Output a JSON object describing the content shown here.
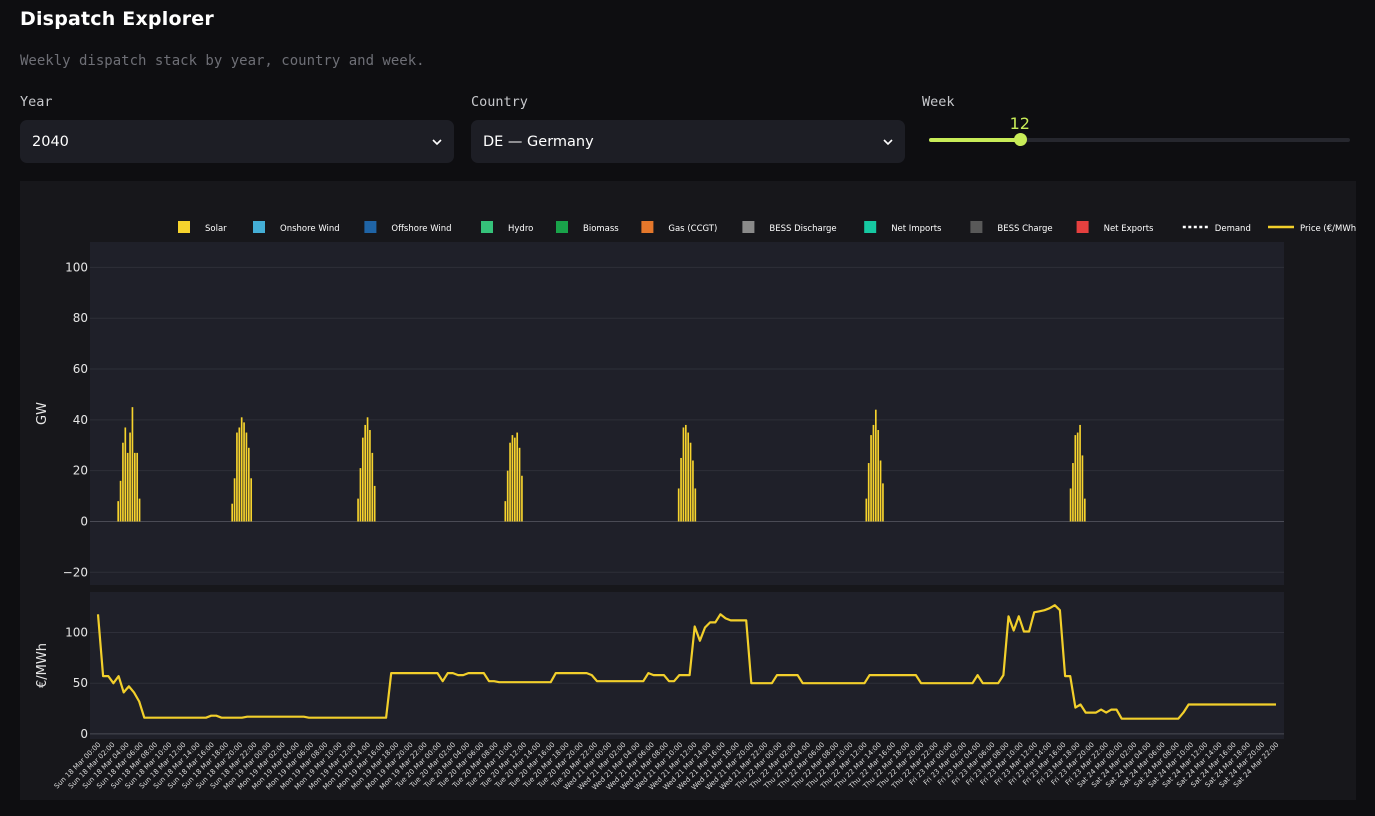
{
  "app": {
    "title": "Dispatch Explorer",
    "subtitle": "Weekly dispatch stack by year, country and week."
  },
  "controls": {
    "year": {
      "label": "Year",
      "value": "2040"
    },
    "country": {
      "label": "Country",
      "value": "DE — Germany"
    },
    "week": {
      "label": "Week",
      "value": 12,
      "min": 1,
      "max": 52
    }
  },
  "colors": {
    "accent": "#c8ec58",
    "Solar": "#f6d32d",
    "Onshore Wind": "#44aed6",
    "Offshore Wind": "#1f64a6",
    "Hydro": "#35c27a",
    "Biomass": "#19a34a",
    "Gas (CCGT)": "#e4772b",
    "BESS Discharge": "#8a8a8a",
    "Net Imports": "#16c9a2",
    "BESS Charge": "#595959",
    "Net Exports": "#e5403f",
    "Demand": "#ffffff",
    "Price (€/MWh)": "#f2cf2b"
  },
  "chart_data": {
    "type": "bar",
    "legend": [
      "Solar",
      "Onshore Wind",
      "Offshore Wind",
      "Hydro",
      "Biomass",
      "Gas (CCGT)",
      "BESS Discharge",
      "Net Imports",
      "BESS Charge",
      "Net Exports",
      "Demand",
      "Price (€/MWh)"
    ],
    "legend_placement": "top-center",
    "top_panel": {
      "ylabel": "GW",
      "ylim": [
        -25,
        110
      ],
      "yticks": [
        -20,
        0,
        20,
        40,
        60,
        80,
        100
      ],
      "stacked": true
    },
    "bottom_panel": {
      "ylabel": "€/MWh",
      "ylim": [
        -5,
        140
      ],
      "yticks": [
        0,
        50,
        100
      ]
    },
    "x_ticks": [
      "Sun 18 Mar 00:00",
      "Sun 18 Mar 02:00",
      "Sun 18 Mar 04:00",
      "Sun 18 Mar 06:00",
      "Sun 18 Mar 08:00",
      "Sun 18 Mar 10:00",
      "Sun 18 Mar 12:00",
      "Sun 18 Mar 14:00",
      "Sun 18 Mar 16:00",
      "Sun 18 Mar 18:00",
      "Sun 18 Mar 20:00",
      "Sun 18 Mar 22:00",
      "Mon 19 Mar 00:00",
      "Mon 19 Mar 02:00",
      "Mon 19 Mar 04:00",
      "Mon 19 Mar 06:00",
      "Mon 19 Mar 08:00",
      "Mon 19 Mar 10:00",
      "Mon 19 Mar 12:00",
      "Mon 19 Mar 14:00",
      "Mon 19 Mar 16:00",
      "Mon 19 Mar 18:00",
      "Mon 19 Mar 20:00",
      "Mon 19 Mar 22:00",
      "Tue 20 Mar 00:00",
      "Tue 20 Mar 02:00",
      "Tue 20 Mar 04:00",
      "Tue 20 Mar 06:00",
      "Tue 20 Mar 08:00",
      "Tue 20 Mar 10:00",
      "Tue 20 Mar 12:00",
      "Tue 20 Mar 14:00",
      "Tue 20 Mar 16:00",
      "Tue 20 Mar 18:00",
      "Tue 20 Mar 20:00",
      "Tue 20 Mar 22:00",
      "Wed 21 Mar 00:00",
      "Wed 21 Mar 02:00",
      "Wed 21 Mar 04:00",
      "Wed 21 Mar 06:00",
      "Wed 21 Mar 08:00",
      "Wed 21 Mar 10:00",
      "Wed 21 Mar 12:00",
      "Wed 21 Mar 14:00",
      "Wed 21 Mar 16:00",
      "Wed 21 Mar 18:00",
      "Wed 21 Mar 20:00",
      "Wed 21 Mar 22:00",
      "Thu 22 Mar 00:00",
      "Thu 22 Mar 02:00",
      "Thu 22 Mar 04:00",
      "Thu 22 Mar 06:00",
      "Thu 22 Mar 08:00",
      "Thu 22 Mar 10:00",
      "Thu 22 Mar 12:00",
      "Thu 22 Mar 14:00",
      "Thu 22 Mar 16:00",
      "Thu 22 Mar 18:00",
      "Thu 22 Mar 20:00",
      "Thu 22 Mar 22:00",
      "Fri 23 Mar 00:00",
      "Fri 23 Mar 02:00",
      "Fri 23 Mar 04:00",
      "Fri 23 Mar 06:00",
      "Fri 23 Mar 08:00",
      "Fri 23 Mar 10:00",
      "Fri 23 Mar 12:00",
      "Fri 23 Mar 14:00",
      "Fri 23 Mar 16:00",
      "Fri 23 Mar 18:00",
      "Fri 23 Mar 20:00",
      "Fri 23 Mar 22:00",
      "Sat 24 Mar 00:00",
      "Sat 24 Mar 02:00",
      "Sat 24 Mar 04:00",
      "Sat 24 Mar 06:00",
      "Sat 24 Mar 08:00",
      "Sat 24 Mar 10:00",
      "Sat 24 Mar 12:00",
      "Sat 24 Mar 14:00",
      "Sat 24 Mar 16:00",
      "Sat 24 Mar 18:00",
      "Sat 24 Mar 20:00",
      "Sat 24 Mar 22:00"
    ],
    "series": [
      {
        "name": "Solar",
        "values": [
          0,
          0,
          0,
          0,
          0,
          0,
          0,
          0,
          8,
          16,
          31,
          37,
          27,
          35,
          45,
          27,
          27,
          9,
          0,
          0,
          0,
          0,
          0,
          0,
          0,
          0,
          0,
          0,
          0,
          0,
          0,
          0,
          0,
          0,
          0,
          0,
          0,
          0,
          0,
          0,
          0,
          0,
          0,
          0,
          0,
          0,
          0,
          0,
          0,
          0,
          0,
          0,
          0,
          0,
          0,
          0,
          7,
          17,
          35,
          37,
          41,
          39,
          35,
          29,
          17,
          0,
          0,
          0,
          0,
          0,
          0,
          0,
          0,
          0,
          0,
          0,
          0,
          0,
          0,
          0,
          0,
          0,
          0,
          0,
          0,
          0,
          0,
          0,
          0,
          0,
          0,
          0,
          0,
          0,
          0,
          0,
          0,
          0,
          0,
          0,
          0,
          0,
          0,
          0,
          0,
          0,
          0,
          0,
          0,
          9,
          21,
          33,
          38,
          41,
          36,
          27,
          14,
          0,
          0,
          0,
          0,
          0,
          0,
          0,
          0,
          0,
          0,
          0,
          0,
          0,
          0,
          0,
          0,
          0,
          0,
          0,
          0,
          0,
          0,
          0,
          0,
          0,
          0,
          0,
          0,
          0,
          0,
          0,
          0,
          0,
          0,
          0,
          0,
          0,
          0,
          0,
          0,
          0,
          0,
          0,
          0,
          0,
          0,
          0,
          0,
          0,
          0,
          0,
          0,
          0,
          0,
          8,
          20,
          31,
          34,
          33,
          35,
          29,
          18,
          0,
          0,
          0,
          0,
          0,
          0,
          0,
          0,
          0,
          0,
          0,
          0,
          0,
          0,
          0,
          0,
          0,
          0,
          0,
          0,
          0,
          0,
          0,
          0,
          0,
          0,
          0,
          0,
          0,
          0,
          0,
          0,
          0,
          0,
          0,
          0,
          0,
          0,
          0,
          0,
          0,
          0,
          0,
          0,
          0,
          0,
          0,
          0,
          0,
          0,
          0,
          0,
          0,
          0,
          0,
          0,
          0,
          0,
          0,
          0,
          0,
          0,
          0,
          0,
          0,
          13,
          25,
          37,
          38,
          35,
          31,
          24,
          13,
          0,
          0,
          0,
          0,
          0,
          0,
          0,
          0,
          0,
          0,
          0,
          0,
          0,
          0,
          0,
          0,
          0,
          0,
          0,
          0,
          0,
          0,
          0,
          0,
          0,
          0,
          0,
          0,
          0,
          0,
          0,
          0,
          0,
          0,
          0,
          0,
          0,
          0,
          0,
          0,
          0,
          0,
          0,
          0,
          0,
          0,
          0,
          0,
          0,
          0,
          0,
          0,
          0,
          0,
          0,
          0,
          0,
          0,
          0,
          0,
          0,
          0,
          0,
          0,
          0,
          0,
          0,
          0,
          0,
          0,
          0,
          9,
          23,
          34,
          38,
          44,
          36,
          24,
          15,
          0,
          0,
          0,
          0,
          0,
          0,
          0,
          0,
          0,
          0,
          0,
          0,
          0,
          0,
          0,
          0,
          0,
          0,
          0,
          0,
          0,
          0,
          0,
          0,
          0,
          0,
          0,
          0,
          0,
          0,
          0,
          0,
          0,
          0,
          0,
          0,
          0,
          0,
          0,
          0,
          0,
          0,
          0,
          0,
          0,
          0,
          0,
          0,
          0,
          0,
          0,
          0,
          0,
          0,
          0,
          0,
          0,
          0,
          0,
          0,
          0,
          0,
          0,
          0,
          0,
          0,
          0,
          0,
          0,
          0,
          0,
          0,
          0,
          0,
          0,
          0,
          0,
          0,
          13,
          23,
          34,
          35,
          38,
          26,
          9,
          0,
          0,
          0,
          0,
          0,
          0,
          0,
          0,
          0,
          0,
          0,
          0,
          0,
          0,
          0,
          0,
          0,
          0,
          0,
          0,
          0,
          0,
          0,
          0,
          0,
          0,
          0,
          0,
          0,
          0,
          0,
          0,
          0,
          0,
          0,
          0,
          0,
          0,
          0,
          0,
          0,
          0,
          0,
          0,
          0,
          0,
          0,
          0,
          0,
          0,
          0,
          0,
          0,
          0,
          0,
          0,
          0,
          0,
          0,
          0,
          0,
          0,
          0,
          0,
          0,
          0,
          0,
          0,
          0,
          0,
          0,
          0,
          0,
          0,
          0,
          0,
          0,
          0,
          0,
          0
        ]
      }
    ],
    "price_series": {
      "name": "Price (€/MWh)",
      "values": [
        118,
        57,
        57,
        50,
        57,
        41,
        47,
        41,
        32,
        16,
        16,
        16,
        16,
        16,
        16,
        16,
        16,
        16,
        16,
        16,
        16,
        16,
        18,
        18,
        16,
        16,
        16,
        16,
        16,
        17,
        17,
        17,
        17,
        17,
        17,
        17,
        17,
        17,
        17,
        17,
        17,
        16,
        16,
        16,
        16,
        16,
        16,
        16,
        16,
        16,
        16,
        16,
        16,
        16,
        16,
        16,
        16,
        60,
        60,
        60,
        60,
        60,
        60,
        60,
        60,
        60,
        60,
        52,
        60,
        60,
        58,
        58,
        60,
        60,
        60,
        60,
        52,
        52,
        51,
        51,
        51,
        51,
        51,
        51,
        51,
        51,
        51,
        51,
        51,
        60,
        60,
        60,
        60,
        60,
        60,
        60,
        58,
        52,
        52,
        52,
        52,
        52,
        52,
        52,
        52,
        52,
        52,
        60,
        58,
        58,
        58,
        52,
        52,
        58,
        58,
        58,
        106,
        92,
        105,
        110,
        110,
        118,
        114,
        112,
        112,
        112,
        112,
        50,
        50,
        50,
        50,
        50,
        58,
        58,
        58,
        58,
        58,
        50,
        50,
        50,
        50,
        50,
        50,
        50,
        50,
        50,
        50,
        50,
        50,
        50,
        58,
        58,
        58,
        58,
        58,
        58,
        58,
        58,
        58,
        58,
        50,
        50,
        50,
        50,
        50,
        50,
        50,
        50,
        50,
        50,
        50,
        58,
        50,
        50,
        50,
        50,
        58,
        116,
        102,
        116,
        101,
        101,
        120,
        121,
        122,
        124,
        127,
        122,
        57,
        57,
        26,
        29,
        21,
        21,
        21,
        24,
        21,
        24,
        24,
        15,
        15,
        15,
        15,
        15,
        15,
        15,
        15,
        15,
        15,
        15,
        15,
        21,
        29,
        29,
        29,
        29,
        29,
        29,
        29,
        29,
        29,
        29,
        29,
        29,
        29,
        29,
        29,
        29,
        29,
        29
      ]
    }
  }
}
